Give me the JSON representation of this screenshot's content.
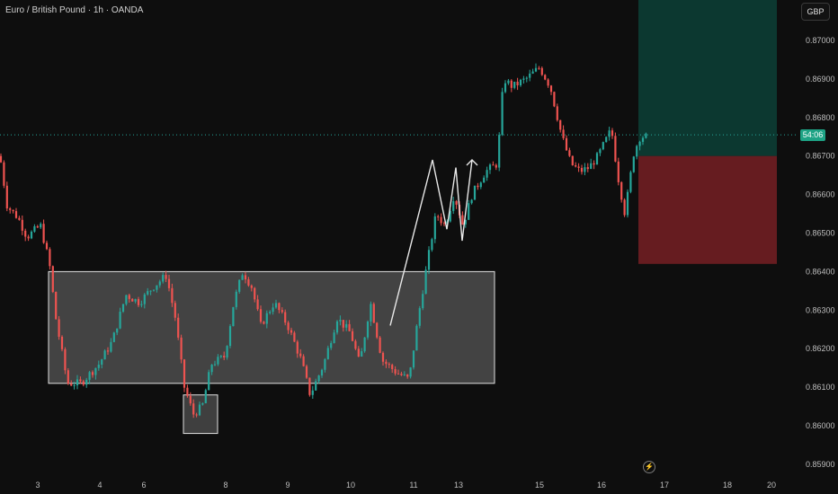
{
  "header": {
    "title": "Euro / British Pound · 1h · OANDA",
    "currency": "GBP",
    "last_price_label": "54:06"
  },
  "icons": {
    "bolt": "lightning-icon"
  },
  "colors": {
    "background": "#0e0e0e",
    "up": "#26a69a",
    "down": "#ef5350",
    "profit_zone": "#0d3b33",
    "loss_zone": "#6b1d22",
    "box_fill": "#6f6f6f",
    "box_stroke": "#e0e0e0",
    "current_line": "#26a69a"
  },
  "chart_data": {
    "type": "candlestick",
    "y_ticks": [
      "0.87000",
      "0.86900",
      "0.86800",
      "0.86700",
      "0.86600",
      "0.86500",
      "0.86400",
      "0.86300",
      "0.86200",
      "0.86100",
      "0.86000",
      "0.85900"
    ],
    "x_ticks": [
      "3",
      "4",
      "6",
      "8",
      "9",
      "10",
      "11",
      "13",
      "15",
      "16",
      "17",
      "18",
      "20"
    ],
    "ylim": [
      0.8587,
      0.8714
    ],
    "current_price": 0.86755,
    "consolidation_box": {
      "x_from": "3",
      "x_to": "11",
      "top": 0.864,
      "bottom": 0.8611
    },
    "liquidity_box": {
      "x_from": "7",
      "x_to": "8",
      "top": 0.8608,
      "bottom": 0.8598
    },
    "position": {
      "type": "long",
      "entry": 0.867,
      "take_profit": 0.8714,
      "stop_loss": 0.8642
    },
    "path_annotation": [
      0.8626,
      0.8669,
      0.8651,
      0.8667,
      0.8648,
      0.8669
    ]
  }
}
